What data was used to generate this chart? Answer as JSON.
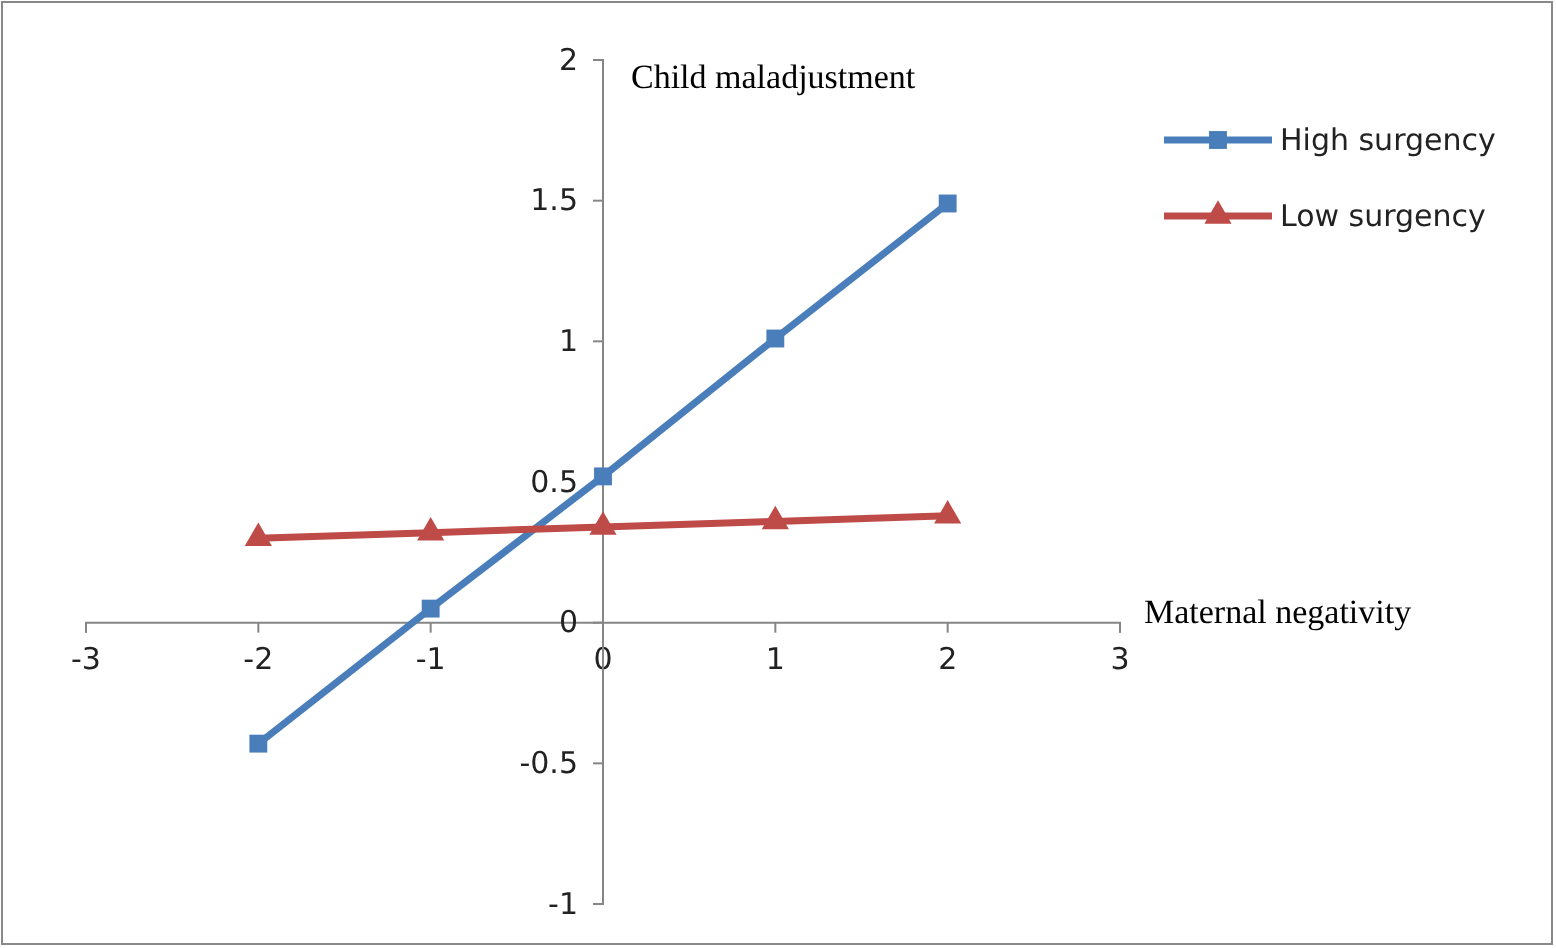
{
  "chart_data": {
    "type": "line",
    "xlabel": "Maternal negativity",
    "ylabel": "Child maladjustment",
    "x": [
      -2,
      -1,
      0,
      1,
      2
    ],
    "series": [
      {
        "name": "High surgency",
        "color": "#4a7ebb",
        "marker": "square",
        "values": [
          -0.43,
          0.05,
          0.52,
          1.01,
          1.49
        ]
      },
      {
        "name": "Low surgency",
        "color": "#be4b48",
        "marker": "triangle",
        "values": [
          0.3,
          0.32,
          0.34,
          0.36,
          0.38
        ]
      }
    ],
    "xlim": [
      -3,
      3
    ],
    "xticks": [
      -3,
      -2,
      -1,
      0,
      1,
      2,
      3
    ],
    "ylim": [
      -1,
      2
    ],
    "yticks": [
      -1,
      -0.5,
      0,
      0.5,
      1,
      1.5,
      2
    ],
    "legend": "right",
    "grid": false,
    "line_style": "solid"
  }
}
